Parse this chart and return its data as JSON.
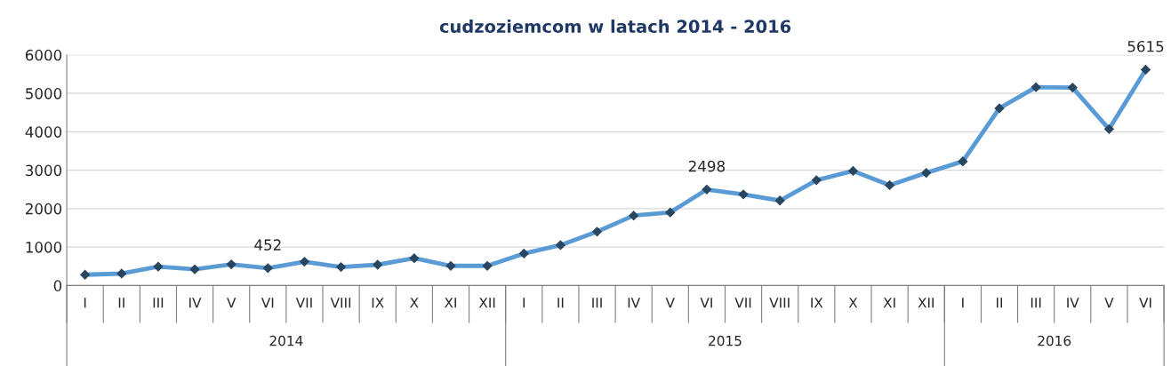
{
  "chart_data": {
    "type": "line",
    "title": "cudzoziemcom w latach 2014 - 2016",
    "categories": [
      "I",
      "II",
      "III",
      "IV",
      "V",
      "VI",
      "VII",
      "VIII",
      "IX",
      "X",
      "XI",
      "XII",
      "I",
      "II",
      "III",
      "IV",
      "V",
      "VI",
      "VII",
      "VIII",
      "IX",
      "X",
      "XI",
      "XII",
      "I",
      "II",
      "III",
      "IV",
      "V",
      "VI"
    ],
    "series": [
      {
        "color": "#5b9bd5",
        "values": [
          280,
          310,
          490,
          420,
          550,
          452,
          620,
          480,
          540,
          710,
          510,
          510,
          830,
          1050,
          1400,
          1820,
          1900,
          2498,
          2370,
          2210,
          2740,
          2980,
          2610,
          2930,
          3230,
          4610,
          5160,
          5150,
          4070,
          5615
        ],
        "value_labels": [
          null,
          null,
          null,
          null,
          null,
          "452",
          null,
          null,
          null,
          null,
          null,
          null,
          null,
          null,
          null,
          null,
          null,
          "2498",
          null,
          null,
          null,
          null,
          null,
          null,
          null,
          null,
          null,
          null,
          null,
          "5615"
        ]
      }
    ],
    "annotations": [
      "2014",
      "2015",
      "2016"
    ],
    "ylim": [
      0,
      6000
    ],
    "yticks": [
      0,
      1000,
      2000,
      3000,
      4000,
      5000,
      6000
    ],
    "grid": "y",
    "marker": "diamond",
    "line_style": "solid",
    "legend": false
  }
}
